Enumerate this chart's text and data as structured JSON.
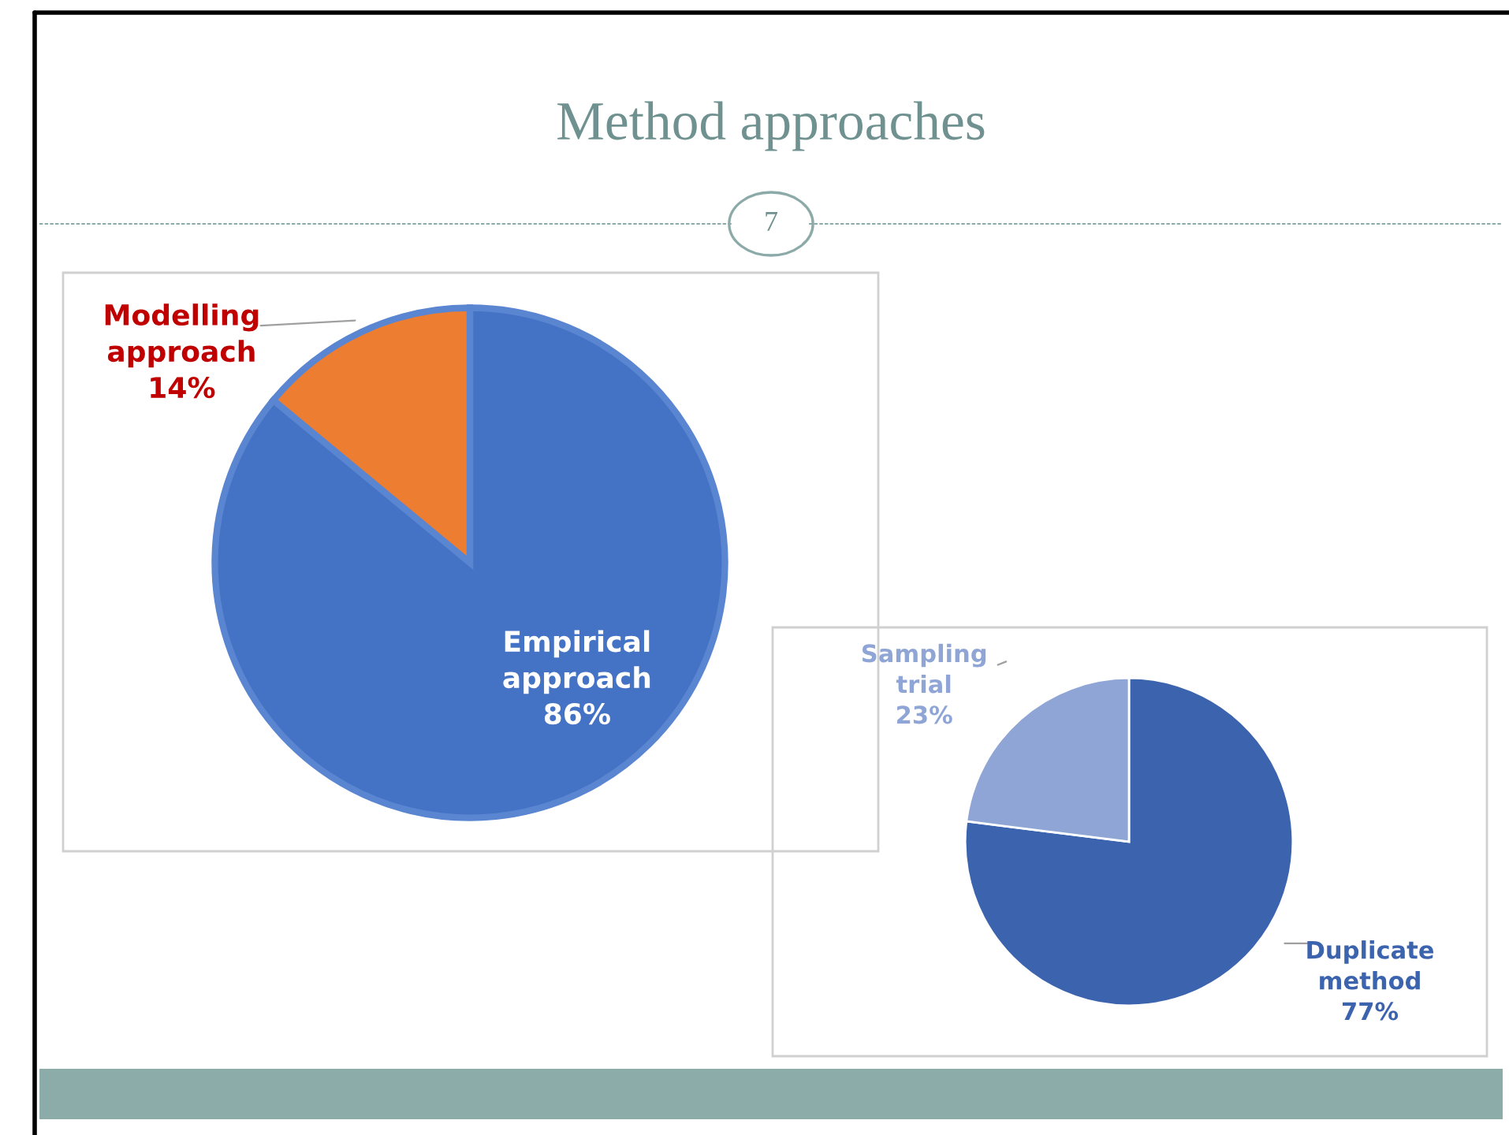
{
  "chart_data": [
    {
      "type": "pie",
      "title": "Method approaches",
      "annotations": [
        "7"
      ],
      "categories": [
        "Empirical approach",
        "Modelling approach"
      ],
      "values": [
        86,
        14
      ],
      "colors": [
        "#4472c4",
        "#ed7d31"
      ],
      "value_labels": [
        "86%",
        "14%"
      ],
      "legend": false
    },
    {
      "type": "pie",
      "categories": [
        "Duplicate method",
        "Sampling trial"
      ],
      "values": [
        77,
        23
      ],
      "colors": [
        "#3c64ae",
        "#8fa5d6"
      ],
      "value_labels": [
        "77%",
        "23%"
      ],
      "legend": false
    }
  ]
}
